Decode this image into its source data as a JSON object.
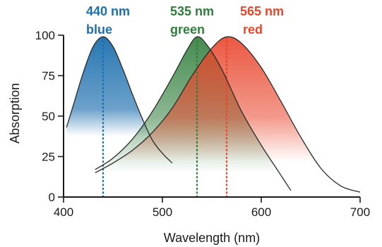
{
  "chart_data": {
    "type": "line",
    "title": "",
    "xlabel": "Wavelength (nm)",
    "ylabel": "Absorption",
    "xlim": [
      400,
      700
    ],
    "ylim": [
      0,
      100
    ],
    "x_ticks": [
      400,
      500,
      600,
      700
    ],
    "y_ticks": [
      0,
      25,
      50,
      75,
      100
    ],
    "grid": false,
    "series": [
      {
        "peak_wavelength_label": "440 nm",
        "color_label": "blue",
        "color": "#1c6fae",
        "x": [
          403,
          410,
          420,
          430,
          440,
          450,
          460,
          470,
          480,
          490,
          500,
          510
        ],
        "y": [
          43,
          57,
          77,
          93,
          99,
          93,
          79,
          63,
          48,
          35,
          27,
          21
        ]
      },
      {
        "peak_wavelength_label": "535 nm",
        "color_label": "green",
        "color": "#2f7d3a",
        "x": [
          432,
          450,
          470,
          490,
          510,
          525,
          535,
          545,
          560,
          580,
          600,
          615,
          630
        ],
        "y": [
          17,
          24,
          36,
          53,
          74,
          91,
          99,
          94,
          79,
          53,
          32,
          18,
          4
        ]
      },
      {
        "peak_wavelength_label": "565 nm",
        "color_label": "red",
        "color": "#e8462c",
        "x": [
          432,
          450,
          470,
          490,
          510,
          530,
          550,
          565,
          580,
          600,
          620,
          640,
          660,
          680,
          700
        ],
        "y": [
          15,
          21,
          29,
          40,
          55,
          75,
          92,
          99,
          95,
          80,
          59,
          37,
          18,
          7,
          3
        ]
      }
    ]
  }
}
